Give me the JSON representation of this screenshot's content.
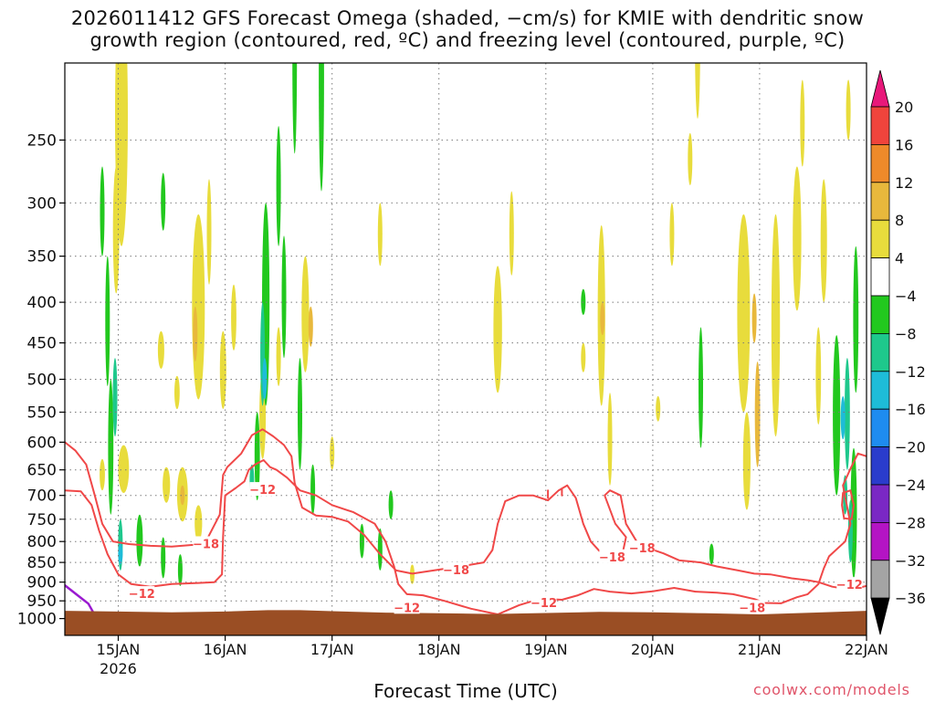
{
  "title": {
    "line1": "2026011412 GFS Forecast Omega (shaded, −cm/s) for KMIE with dendritic snow",
    "line2": "growth region (contoured, red, ºC) and freezing level (contoured, purple, ºC)"
  },
  "footer": {
    "xlabel": "Forecast Time (UTC)",
    "credit": "coolwx.com/models"
  },
  "chart_data": {
    "type": "heatmap",
    "title": "2026011412 GFS Forecast Omega (shaded, −cm/s) for KMIE with dendritic snow growth region (contoured, red, ºC) and freezing level (contoured, purple, ºC)",
    "xlabel": "Forecast Time (UTC)",
    "ylabel": "",
    "x_range_days": [
      14.5,
      22.0
    ],
    "y_range_hpa": [
      1050,
      200
    ],
    "y_scale": "log-pressure",
    "grid": true,
    "x_ticks": [
      {
        "value": 15,
        "label": "15JAN",
        "sublabel": "2026"
      },
      {
        "value": 16,
        "label": "16JAN",
        "sublabel": ""
      },
      {
        "value": 17,
        "label": "17JAN",
        "sublabel": ""
      },
      {
        "value": 18,
        "label": "18JAN",
        "sublabel": ""
      },
      {
        "value": 19,
        "label": "19JAN",
        "sublabel": ""
      },
      {
        "value": 20,
        "label": "20JAN",
        "sublabel": ""
      },
      {
        "value": 21,
        "label": "21JAN",
        "sublabel": ""
      },
      {
        "value": 22,
        "label": "22JAN",
        "sublabel": ""
      }
    ],
    "y_ticks": [
      250,
      300,
      350,
      400,
      450,
      500,
      550,
      600,
      650,
      700,
      750,
      800,
      850,
      900,
      950,
      1000
    ],
    "colorbar": {
      "levels": [
        {
          "label": "20",
          "color": "#e8187a"
        },
        {
          "label": "16",
          "color": "#f0443c"
        },
        {
          "label": "12",
          "color": "#ee8a2a"
        },
        {
          "label": "8",
          "color": "#e8b83c"
        },
        {
          "label": "4",
          "color": "#e8dc3c"
        },
        {
          "label": "−4",
          "color": "#ffffff"
        },
        {
          "label": "−8",
          "color": "#22c81e"
        },
        {
          "label": "−12",
          "color": "#1ec88c"
        },
        {
          "label": "−16",
          "color": "#1ebcd8"
        },
        {
          "label": "−20",
          "color": "#1e8cf0"
        },
        {
          "label": "−24",
          "color": "#2a3ccc"
        },
        {
          "label": "−28",
          "color": "#7a28c4"
        },
        {
          "label": "−32",
          "color": "#b414c4"
        },
        {
          "label": "−36",
          "color": "#a4a4a4"
        }
      ],
      "under_color": "#000000"
    },
    "contour_labels": [
      {
        "x": 15.82,
        "p": 805,
        "label": "−18"
      },
      {
        "x": 15.22,
        "p": 930,
        "label": "−12"
      },
      {
        "x": 16.35,
        "p": 688,
        "label": "−12"
      },
      {
        "x": 18.16,
        "p": 868,
        "label": "−18"
      },
      {
        "x": 17.7,
        "p": 968,
        "label": "−12"
      },
      {
        "x": 18.98,
        "p": 955,
        "label": "−12"
      },
      {
        "x": 19.62,
        "p": 836,
        "label": "−18"
      },
      {
        "x": 19.9,
        "p": 815,
        "label": "−18"
      },
      {
        "x": 20.93,
        "p": 968,
        "label": "−18"
      },
      {
        "x": 21.84,
        "p": 906,
        "label": "−12"
      }
    ],
    "colors": {
      "dgz_contour": "#f04848",
      "freezing_contour": "#9a1ad0",
      "terrain": "#9a4e24",
      "grid": "#7a7a7a"
    }
  }
}
